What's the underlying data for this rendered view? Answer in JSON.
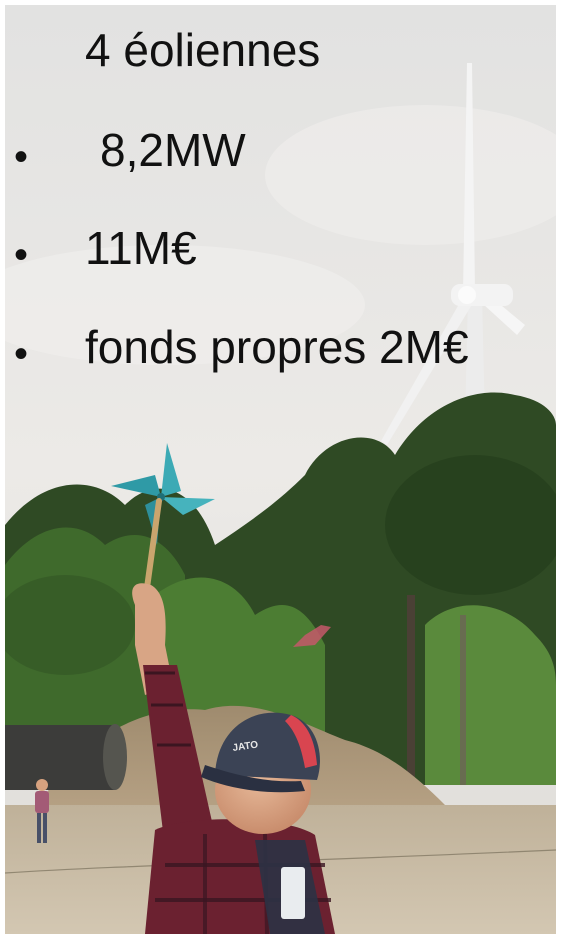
{
  "slide": {
    "title": "4 éoliennes",
    "bullets": [
      {
        "marker": "•",
        "text": "8,2MW"
      },
      {
        "marker": "•",
        "text": "11M€"
      },
      {
        "marker": "•",
        "text": "fonds propres 2M€"
      }
    ]
  },
  "photo": {
    "subject": "child-holding-pinwheel-with-wind-turbine-behind",
    "colors": {
      "sky": "#e6e5e3",
      "trees": "#314a23",
      "ground": "#c9bca6",
      "pinwheel": "#39a4b0",
      "turbine": "#f2f2f2",
      "shirt": "#6b2130",
      "cap": "#3b4355"
    }
  }
}
